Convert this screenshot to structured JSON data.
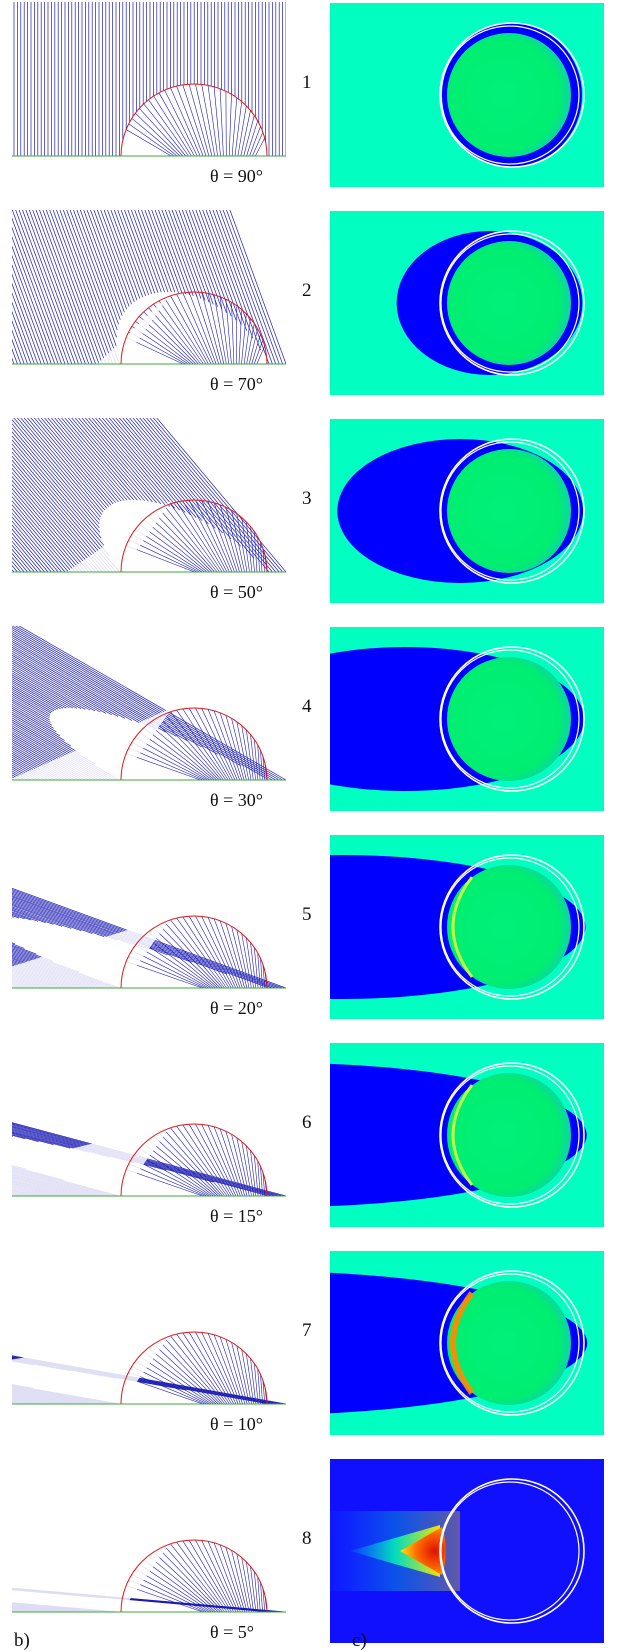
{
  "rows": [
    {
      "number": "1",
      "angle_label": "θ = 90°",
      "angle_deg": 90
    },
    {
      "number": "2",
      "angle_label": "θ = 70°",
      "angle_deg": 70
    },
    {
      "number": "3",
      "angle_label": "θ = 50°",
      "angle_deg": 50
    },
    {
      "number": "4",
      "angle_label": "θ = 30°",
      "angle_deg": 30
    },
    {
      "number": "5",
      "angle_label": "θ = 20°",
      "angle_deg": 20
    },
    {
      "number": "6",
      "angle_label": "θ = 15°",
      "angle_deg": 15
    },
    {
      "number": "7",
      "angle_label": "θ = 10°",
      "angle_deg": 10
    },
    {
      "number": "8",
      "angle_label": "θ = 5°",
      "angle_deg": 5
    }
  ],
  "panel_labels": {
    "left": "b)",
    "right": "c)"
  },
  "colors": {
    "rays": "#1c1cb4",
    "arc": "#e01818",
    "ground": "#3aa83a",
    "background_field": "#00ffc0",
    "dark_blue": "#0000ff",
    "disk_green": "#00ff66",
    "ring": "#ffffff",
    "hot_red": "#e01000",
    "hot_yellow": "#ffd800"
  }
}
